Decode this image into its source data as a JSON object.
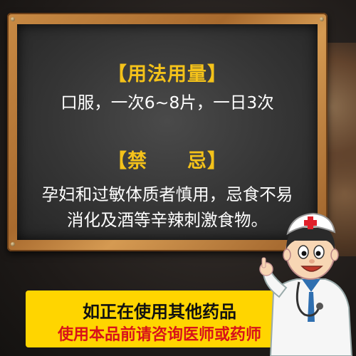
{
  "usage": {
    "heading": "【用法用量】",
    "text": "口服，一次6~8片，一日3次"
  },
  "contraindication": {
    "heading": "【禁　　忌】",
    "line1": "孕妇和过敏体质者慎用，忌食不易",
    "line2": "消化及酒等辛辣刺激食物。"
  },
  "banner": {
    "line1": "如正在使用其他药品",
    "line2": "使用本品前请咨询医师或药师"
  },
  "colors": {
    "heading": "#f4c21a",
    "banner_bg": "#ffd500",
    "banner_warning": "#d8121a"
  },
  "icons": [
    "doctor-cartoon"
  ]
}
